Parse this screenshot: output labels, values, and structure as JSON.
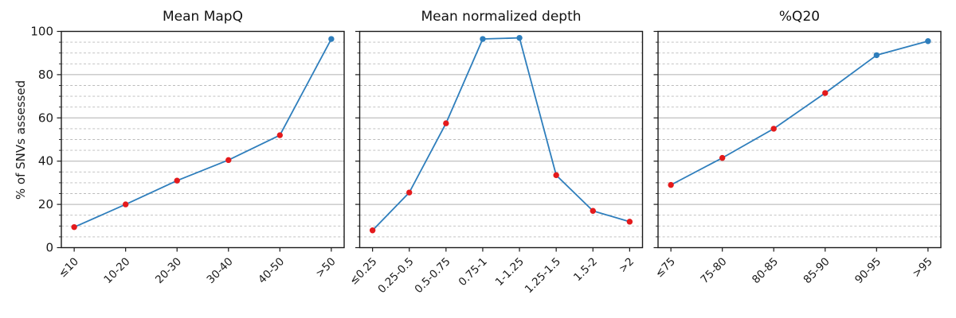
{
  "figure": {
    "ylabel": "% of SNVs assessed",
    "ylim": [
      0,
      100
    ],
    "yticks": [
      0,
      20,
      40,
      60,
      80,
      100
    ],
    "minor_step": 5,
    "grid": "major solid, minor dashed",
    "legend": "none",
    "colors": {
      "line": "#2e7ebc",
      "marker_blue": "#2e7ebc",
      "marker_red": "#e41a1c",
      "grid_major": "#b0b0b0",
      "grid_minor": "#bbbbbb",
      "spine": "#1a1a1a",
      "text": "#1a1a1a"
    }
  },
  "chart_data": [
    {
      "type": "line",
      "title": "Mean MapQ",
      "categories": [
        "≤10",
        "10-20",
        "20-30",
        "30-40",
        "40-50",
        ">50"
      ],
      "values": [
        9.5,
        20,
        31,
        40.5,
        52,
        96.5
      ],
      "point_colors": [
        "red",
        "red",
        "red",
        "red",
        "red",
        "blue"
      ],
      "xlabel": "",
      "ylabel": "% of SNVs assessed",
      "ylim": [
        0,
        100
      ]
    },
    {
      "type": "line",
      "title": "Mean normalized depth",
      "categories": [
        "≤0.25",
        "0.25-0.5",
        "0.5-0.75",
        "0.75-1",
        "1-1.25",
        "1.25-1.5",
        "1.5-2",
        ">2"
      ],
      "values": [
        8,
        25.5,
        57.5,
        96.5,
        97,
        33.5,
        17,
        12
      ],
      "point_colors": [
        "red",
        "red",
        "red",
        "blue",
        "blue",
        "red",
        "red",
        "red"
      ],
      "xlabel": "",
      "ylabel": "% of SNVs assessed",
      "ylim": [
        0,
        100
      ]
    },
    {
      "type": "line",
      "title": "%Q20",
      "categories": [
        "≤75",
        "75-80",
        "80-85",
        "85-90",
        "90-95",
        ">95"
      ],
      "values": [
        29,
        41.5,
        55,
        71.5,
        89,
        95.5
      ],
      "point_colors": [
        "red",
        "red",
        "red",
        "red",
        "blue",
        "blue"
      ],
      "xlabel": "",
      "ylabel": "% of SNVs assessed",
      "ylim": [
        0,
        100
      ]
    }
  ]
}
